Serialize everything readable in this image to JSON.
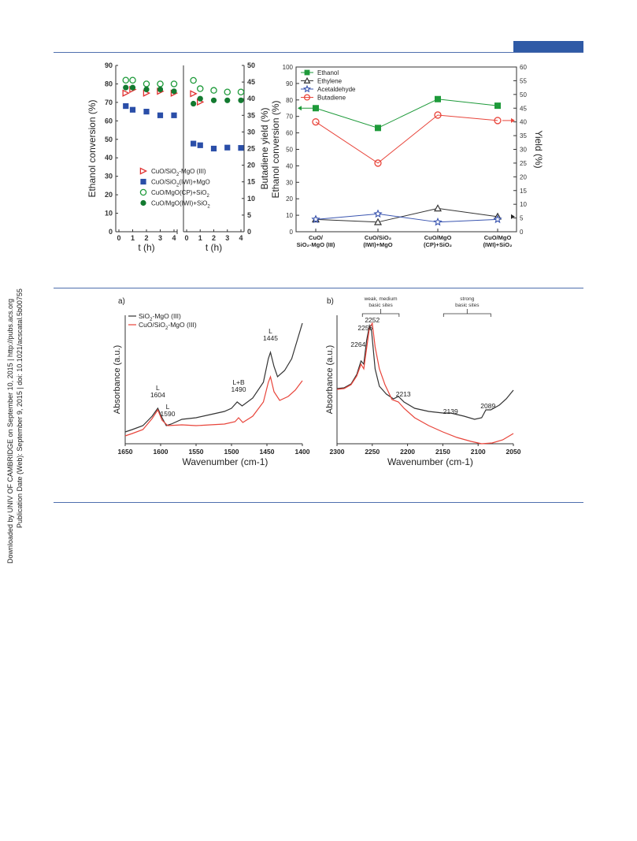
{
  "sidebar": {
    "line1": "Downloaded by UNIV OF CAMBRIDGE on September 10, 2015 | http://pubs.acs.org",
    "line2": "Publication Date (Web): September 9, 2015 | doi: 10.1021/acscatal.5b00755"
  },
  "chart_data": [
    {
      "type": "scatter",
      "panel": "top-left",
      "ylabel_left": "Ethanol conversion (%)",
      "ylabel_right": "Butadiene yield (%)",
      "xlabel": "t (h)",
      "ylim_left": [
        0,
        90
      ],
      "ylim_right": [
        0,
        50
      ],
      "xlim": [
        0,
        4
      ],
      "left_yticks": [
        "0",
        "10",
        "20",
        "30",
        "40",
        "50",
        "60",
        "70",
        "80",
        "90"
      ],
      "right_yticks": [
        "0",
        "5",
        "10",
        "15",
        "20",
        "25",
        "30",
        "35",
        "40",
        "45",
        "50"
      ],
      "xticks": [
        "0",
        "1",
        "2",
        "3",
        "4"
      ],
      "series": [
        {
          "name": "CuO/SiO2-MgO (III)",
          "sub": "2",
          "color": "#e03030",
          "marker": "triangle-right-open",
          "conversion": [
            [
              0.5,
              75
            ],
            [
              1,
              77
            ],
            [
              2,
              75
            ],
            [
              3,
              76
            ],
            [
              4,
              75
            ]
          ],
          "yield": [
            [
              0.5,
              41.5
            ],
            [
              1,
              39
            ]
          ]
        },
        {
          "name": "CuO/SiO2(IWI)+MgO",
          "sub": "2",
          "color": "#2a4ea8",
          "marker": "square-filled",
          "conversion": [
            [
              0.5,
              68
            ],
            [
              1,
              66
            ],
            [
              2,
              65
            ],
            [
              3,
              63
            ],
            [
              4,
              63
            ]
          ],
          "yield": [
            [
              0.5,
              26.5
            ],
            [
              1,
              26
            ],
            [
              2,
              25
            ],
            [
              3,
              25.3
            ],
            [
              4,
              25.2
            ]
          ]
        },
        {
          "name": "CuO/MgO(CP)+SiO2",
          "sub": "2",
          "color": "#1e9a3a",
          "marker": "circle-open",
          "conversion": [
            [
              0.5,
              82
            ],
            [
              1,
              82
            ],
            [
              2,
              80
            ],
            [
              3,
              80
            ],
            [
              4,
              80
            ]
          ],
          "yield": [
            [
              0.5,
              45.5
            ],
            [
              1,
              43
            ],
            [
              2,
              42.5
            ],
            [
              3,
              42
            ],
            [
              4,
              42
            ]
          ]
        },
        {
          "name": "CuO/MgO(IWI)+SiO2",
          "sub": "2",
          "color": "#137a30",
          "marker": "circle-filled",
          "conversion": [
            [
              0.5,
              78
            ],
            [
              1,
              78
            ],
            [
              2,
              77
            ],
            [
              3,
              77
            ],
            [
              4,
              76
            ]
          ],
          "yield": [
            [
              0.5,
              38.5
            ],
            [
              1,
              40
            ],
            [
              2,
              39.5
            ],
            [
              3,
              39.5
            ],
            [
              4,
              39.5
            ]
          ]
        }
      ]
    },
    {
      "type": "line",
      "panel": "top-right",
      "ylabel_left": "Ethanol conversion (%)",
      "ylabel_right": "Yield (%)",
      "ylim_left": [
        0,
        100
      ],
      "ylim_right": [
        0,
        60
      ],
      "left_yticks": [
        "0",
        "10",
        "20",
        "30",
        "40",
        "50",
        "60",
        "70",
        "80",
        "90",
        "100"
      ],
      "right_yticks": [
        "0",
        "5",
        "10",
        "15",
        "20",
        "25",
        "30",
        "35",
        "40",
        "45",
        "50",
        "55",
        "60"
      ],
      "categories": [
        [
          "CuO/",
          "SiO₂-MgO (III)"
        ],
        [
          "CuO/SiO₂",
          "(IWI)+MgO"
        ],
        [
          "CuO/MgO",
          "(CP)+SiO₂"
        ],
        [
          "CuO/MgO",
          "(IWI)+SiO₂"
        ]
      ],
      "series": [
        {
          "name": "Ethanol",
          "axis": "left",
          "color": "#1e9a3a",
          "marker": "square-filled",
          "values": [
            75,
            63,
            80.5,
            76.5
          ]
        },
        {
          "name": "Ethylene",
          "axis": "right",
          "color": "#333333",
          "marker": "triangle-open",
          "values": [
            4.5,
            3.5,
            8.5,
            5.5
          ]
        },
        {
          "name": "Acetaldehyde",
          "axis": "right",
          "color": "#3a55b0",
          "marker": "star-open",
          "values": [
            4.5,
            6.5,
            3.5,
            4.5
          ]
        },
        {
          "name": "Butadiene",
          "axis": "right",
          "color": "#e8443a",
          "marker": "circle-open",
          "values": [
            40,
            25,
            42.5,
            40.5
          ]
        }
      ]
    },
    {
      "type": "line",
      "panel": "bottom-left",
      "panel_label": "a)",
      "xlabel": "Wavenumber (cm⁻¹)",
      "ylabel": "Absorbance (a.u.)",
      "xlim": [
        1650,
        1400
      ],
      "xticks": [
        "1650",
        "1600",
        "1550",
        "1500",
        "1450",
        "1400"
      ],
      "legend": [
        "SiO₂-MgO (III)",
        "CuO/SiO₂-MgO (III)"
      ],
      "annotations": [
        {
          "label": "L",
          "value": "1604"
        },
        {
          "label": "L",
          "value": "1590"
        },
        {
          "label": "L+B",
          "value": "1490"
        },
        {
          "label": "L",
          "value": "1445"
        }
      ]
    },
    {
      "type": "line",
      "panel": "bottom-right",
      "panel_label": "b)",
      "xlabel": "Wavenumber (cm⁻¹)",
      "ylabel": "Absorbance (a.u.)",
      "xlim": [
        2300,
        2050
      ],
      "xticks": [
        "2300",
        "2250",
        "2200",
        "2150",
        "2100",
        "2050"
      ],
      "brackets": [
        {
          "text1": "weak, medium",
          "text2": "basic sites"
        },
        {
          "text1": "strong",
          "text2": "basic sites"
        }
      ],
      "peak_labels": [
        "2252",
        "2256",
        "2264",
        "2213",
        "2139",
        "2089"
      ]
    }
  ]
}
